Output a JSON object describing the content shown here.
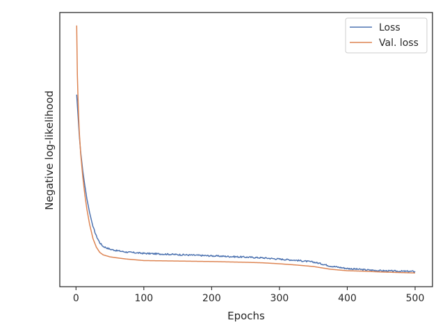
{
  "chart_data": {
    "type": "line",
    "title": "",
    "xlabel": "Epochs",
    "ylabel": "Negative log-likelihood",
    "xlim": [
      -22,
      527
    ],
    "ylim": [
      0,
      1
    ],
    "x_ticks": [
      0,
      100,
      200,
      300,
      400,
      500
    ],
    "x_tick_labels": [
      "0",
      "100",
      "200",
      "300",
      "400",
      "500"
    ],
    "y_ticks": [],
    "y_tick_labels": [],
    "y_values_note": "normalized 0-1 (y-axis unlabeled)",
    "grid": false,
    "legend_position": "top-right",
    "series": [
      {
        "name": "Loss",
        "color": "#4c72b0",
        "x": [
          1,
          3,
          5,
          7,
          10,
          13,
          16,
          20,
          25,
          30,
          35,
          40,
          50,
          60,
          75,
          100,
          150,
          200,
          250,
          275,
          300,
          325,
          350,
          360,
          375,
          400,
          425,
          450,
          475,
          500
        ],
        "y": [
          0.709,
          0.625,
          0.539,
          0.475,
          0.402,
          0.343,
          0.29,
          0.234,
          0.177,
          0.139,
          0.112,
          0.097,
          0.086,
          0.08,
          0.074,
          0.069,
          0.064,
          0.059,
          0.054,
          0.051,
          0.046,
          0.041,
          0.034,
          0.028,
          0.018,
          0.008,
          0.003,
          -0.001,
          -0.003,
          -0.004
        ]
      },
      {
        "name": "Val. loss",
        "color": "#dd8452",
        "x": [
          1,
          2,
          3,
          4,
          5,
          7,
          10,
          13,
          16,
          20,
          25,
          30,
          35,
          40,
          50,
          60,
          75,
          100,
          150,
          200,
          250,
          275,
          300,
          325,
          350,
          375,
          400,
          425,
          450,
          475,
          500
        ],
        "y": [
          0.988,
          0.79,
          0.693,
          0.615,
          0.552,
          0.467,
          0.378,
          0.306,
          0.248,
          0.187,
          0.129,
          0.094,
          0.073,
          0.063,
          0.055,
          0.051,
          0.046,
          0.04,
          0.038,
          0.036,
          0.033,
          0.031,
          0.027,
          0.022,
          0.016,
          0.005,
          -0.001,
          -0.003,
          -0.006,
          -0.008,
          -0.01
        ]
      }
    ]
  }
}
